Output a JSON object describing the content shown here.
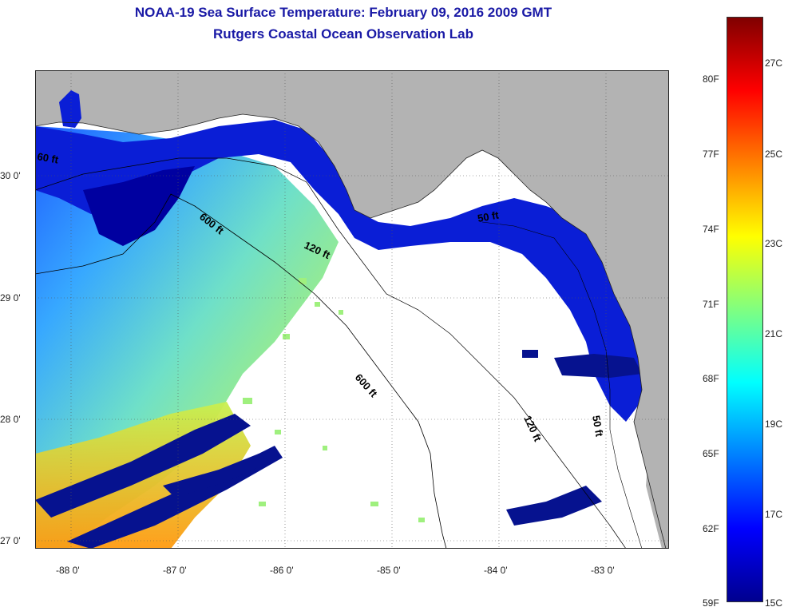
{
  "title": {
    "line1": "NOAA-19 Sea Surface Temperature:  February 09, 2016 2009 GMT",
    "line2": "Rutgers Coastal Ocean Observation Lab"
  },
  "axes": {
    "lat_labels": [
      "30 0'",
      "29 0'",
      "28 0'",
      "27 0'"
    ],
    "lon_labels": [
      "-88 0'",
      "-87 0'",
      "-86 0'",
      "-85 0'",
      "-84 0'",
      "-83 0'"
    ]
  },
  "isobaths": {
    "label_600": "600 ft",
    "label_120": "120 ft",
    "label_60": "60 ft",
    "label_50": "50 ft"
  },
  "colorbar": {
    "fahrenheit": [
      "80F",
      "77F",
      "74F",
      "71F",
      "68F",
      "65F",
      "62F",
      "59F"
    ],
    "celsius": [
      "27C",
      "25C",
      "23C",
      "21C",
      "19C",
      "17C",
      "15C"
    ]
  },
  "colors": {
    "title": "#1a1aa6",
    "land": "#b3b3b3",
    "cloud": "#ffffff",
    "colormap": [
      "#00008f",
      "#0000ff",
      "#0080ff",
      "#00ffff",
      "#80ff80",
      "#ffff00",
      "#ff8000",
      "#ff0000",
      "#800000"
    ]
  }
}
